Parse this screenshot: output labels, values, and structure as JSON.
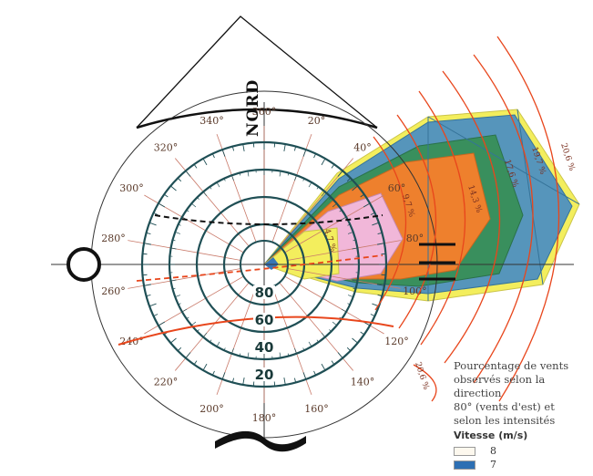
{
  "figure": {
    "north_label": "NORD",
    "ring_labels": [
      "80",
      "60",
      "40",
      "20"
    ],
    "degree_labels": [
      {
        "deg": 0,
        "label": "360°"
      },
      {
        "deg": 20,
        "label": "20°"
      },
      {
        "deg": 40,
        "label": "40°"
      },
      {
        "deg": 60,
        "label": "60°"
      },
      {
        "deg": 80,
        "label": "80°"
      },
      {
        "deg": 100,
        "label": "100°"
      },
      {
        "deg": 120,
        "label": "120°"
      },
      {
        "deg": 140,
        "label": "140°"
      },
      {
        "deg": 160,
        "label": "160°"
      },
      {
        "deg": 180,
        "label": "180°"
      },
      {
        "deg": 200,
        "label": "200°"
      },
      {
        "deg": 220,
        "label": "220°"
      },
      {
        "deg": 240,
        "label": "240°"
      },
      {
        "deg": 260,
        "label": "260°"
      },
      {
        "deg": 280,
        "label": "280°"
      },
      {
        "deg": 300,
        "label": "300°"
      },
      {
        "deg": 320,
        "label": "320°"
      },
      {
        "deg": 340,
        "label": "340°"
      }
    ],
    "percent_labels": [
      "20,6 %",
      "19,7 %",
      "17,6 %",
      "14,3 %",
      "9,7 %",
      "4,7 %",
      "20,6 %"
    ],
    "colors": {
      "ring": "#1f4f55",
      "orange": "#ee7a22",
      "green": "#2f8a55",
      "blue": "#4e90b8",
      "yellow": "#f3ee55",
      "pink": "#f1b4d8",
      "red_arc": "#e8461c"
    }
  },
  "caption": {
    "lines": [
      "Pourcentage de vents",
      "observés selon la direction",
      "80° (vents d'est) et",
      "selon les intensités"
    ]
  },
  "legend": {
    "title": "Vitesse (m/s)",
    "items": [
      {
        "label": "8",
        "color": "#fdf8ee"
      },
      {
        "label": "7",
        "color": "#2d6fb3"
      }
    ]
  }
}
